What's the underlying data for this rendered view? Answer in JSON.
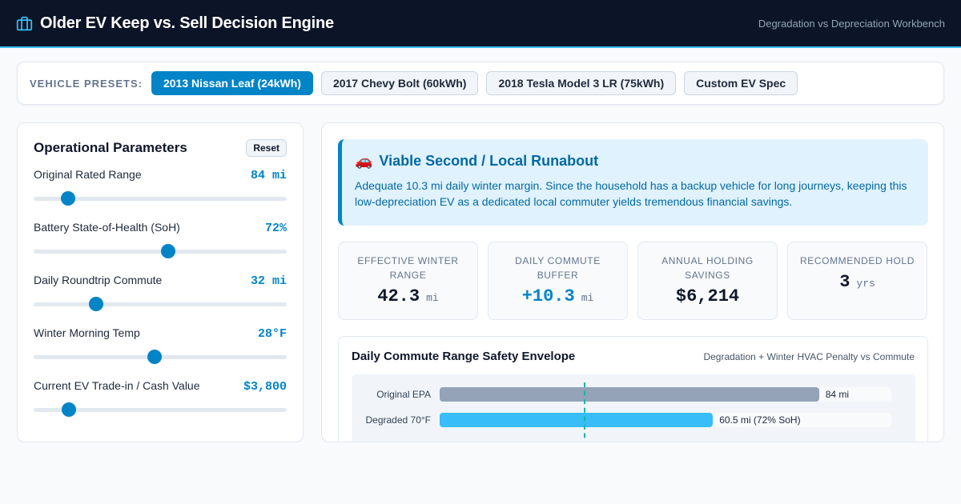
{
  "header": {
    "title": "Older EV Keep vs. Sell Decision Engine",
    "subtitle": "Degradation vs Depreciation Workbench",
    "icon": "briefcase-icon",
    "accent_color": "#38bdf8"
  },
  "presets": {
    "label": "VEHICLE PRESETS:",
    "items": [
      {
        "label": "2013 Nissan Leaf (24kWh)",
        "active": true
      },
      {
        "label": "2017 Chevy Bolt (60kWh)",
        "active": false
      },
      {
        "label": "2018 Tesla Model 3 LR (75kWh)",
        "active": false
      },
      {
        "label": "Custom EV Spec",
        "active": false
      }
    ]
  },
  "params": {
    "title": "Operational Parameters",
    "reset_label": "Reset",
    "items": [
      {
        "label": "Original Rated Range",
        "value": "84 mi",
        "fraction": 0.135
      },
      {
        "label": "Battery State-of-Health (SoH)",
        "value": "72%",
        "fraction": 0.532
      },
      {
        "label": "Daily Roundtrip Commute",
        "value": "32 mi",
        "fraction": 0.248
      },
      {
        "label": "Winter Morning Temp",
        "value": "28°F",
        "fraction": 0.478
      },
      {
        "label": "Current EV Trade-in / Cash Value",
        "value": "$3,800",
        "fraction": 0.138
      }
    ]
  },
  "verdict": {
    "icon": "car-icon",
    "title": "Viable Second / Local Runabout",
    "text": "Adequate 10.3 mi daily winter margin. Since the household has a backup vehicle for long journeys, keeping this low-depreciation EV as a dedicated local commuter yields tremendous financial savings."
  },
  "kpis": [
    {
      "label": "Effective Winter Range",
      "value": "42.3",
      "unit": "mi",
      "accent": false
    },
    {
      "label": "Daily Commute Buffer",
      "value": "+10.3",
      "unit": "mi",
      "accent": true
    },
    {
      "label": "Annual Holding Savings",
      "value": "$6,214",
      "unit": "",
      "accent": false
    },
    {
      "label": "Recommended Hold",
      "value": "3",
      "unit": "yrs",
      "accent": false
    }
  ],
  "chart_data": {
    "type": "bar",
    "title": "Daily Commute Range Safety Envelope",
    "subtitle": "Degradation + Winter HVAC Penalty vs Commute",
    "orientation": "horizontal",
    "x_max": 100,
    "commute_marker": 32,
    "bars": [
      {
        "category": "Original EPA",
        "value": 84,
        "label": "84 mi",
        "color": "#94a3b8"
      },
      {
        "category": "Degraded 70°F",
        "value": 60.5,
        "label": "60.5 mi (72% SoH)",
        "color": "#38bdf8"
      }
    ]
  }
}
